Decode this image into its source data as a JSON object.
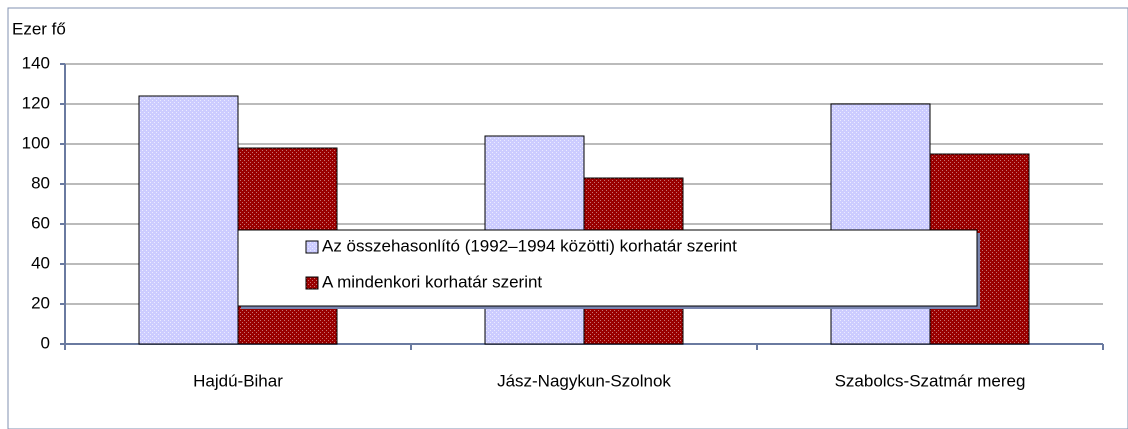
{
  "chart_data": {
    "type": "bar",
    "y_label": "Ezer fő",
    "categories": [
      "Hajdú-Bihar",
      "Jász-Nagykun-Szolnok",
      "Szabolcs-Szatmár mereg"
    ],
    "series": [
      {
        "name": "Az összehasonlító (1992–1994 közötti) korhatár szerint",
        "color": "#ccccff",
        "values": [
          124,
          104,
          120
        ]
      },
      {
        "name": "A mindenkori korhatár szerint",
        "color": "#990000",
        "values": [
          98,
          83,
          95
        ]
      }
    ],
    "ylim": [
      0,
      140
    ],
    "yticks": [
      0,
      20,
      40,
      60,
      80,
      100,
      120,
      140
    ],
    "grid": true
  }
}
